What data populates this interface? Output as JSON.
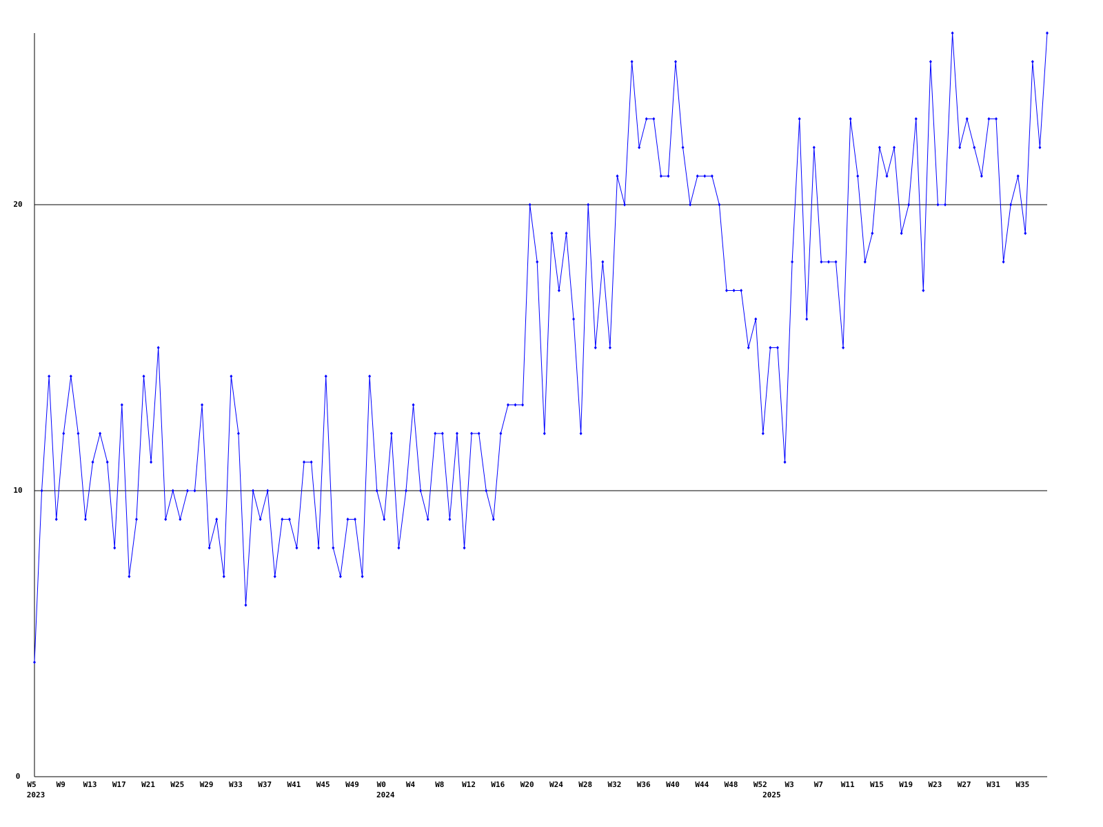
{
  "chart_data": {
    "type": "line",
    "categories": [
      "W5",
      null,
      null,
      null,
      "W9",
      null,
      null,
      null,
      "W13",
      null,
      null,
      null,
      "W17",
      null,
      null,
      null,
      "W21",
      null,
      null,
      null,
      "W25",
      null,
      null,
      null,
      "W29",
      null,
      null,
      null,
      "W33",
      null,
      null,
      null,
      "W37",
      null,
      null,
      null,
      "W41",
      null,
      null,
      null,
      "W45",
      null,
      null,
      null,
      "W49",
      null,
      null,
      null,
      "W0",
      null,
      null,
      null,
      "W4",
      null,
      null,
      null,
      "W8",
      null,
      null,
      null,
      "W12",
      null,
      null,
      null,
      "W16",
      null,
      null,
      null,
      "W20",
      null,
      null,
      null,
      "W24",
      null,
      null,
      null,
      "W28",
      null,
      null,
      null,
      "W32",
      null,
      null,
      null,
      "W36",
      null,
      null,
      null,
      "W40",
      null,
      null,
      null,
      "W44",
      null,
      null,
      null,
      "W48",
      null,
      null,
      null,
      "W52",
      null,
      null,
      null,
      "W3",
      null,
      null,
      null,
      "W7",
      null,
      null,
      null,
      "W11",
      null,
      null,
      null,
      "W15",
      null,
      null,
      null,
      "W19",
      null,
      null,
      null,
      "W23",
      null,
      null,
      null,
      "W27",
      null,
      null,
      null,
      "W31",
      null,
      null,
      null,
      "W35",
      null,
      null,
      null
    ],
    "years": [
      "2023",
      null,
      null,
      null,
      null,
      null,
      null,
      null,
      null,
      null,
      null,
      null,
      null,
      null,
      null,
      null,
      null,
      null,
      null,
      null,
      null,
      null,
      null,
      null,
      null,
      null,
      null,
      null,
      null,
      null,
      null,
      null,
      null,
      null,
      null,
      null,
      null,
      null,
      null,
      null,
      null,
      null,
      null,
      null,
      null,
      null,
      null,
      null,
      "2024",
      null,
      null,
      null,
      null,
      null,
      null,
      null,
      null,
      null,
      null,
      null,
      null,
      null,
      null,
      null,
      null,
      null,
      null,
      null,
      null,
      null,
      null,
      null,
      null,
      null,
      null,
      null,
      null,
      null,
      null,
      null,
      null,
      null,
      null,
      null,
      null,
      null,
      null,
      null,
      null,
      null,
      null,
      null,
      null,
      null,
      null,
      null,
      null,
      null,
      null,
      null,
      null,
      "2025",
      null,
      null,
      null,
      null,
      null,
      null,
      null,
      null,
      null,
      null,
      null,
      null,
      null,
      null,
      null,
      null,
      null,
      null,
      null,
      null,
      null,
      null,
      null,
      null,
      null,
      null,
      null,
      null,
      null,
      null,
      null,
      null,
      null,
      null,
      null,
      null,
      null,
      null
    ],
    "series": [
      {
        "color": "#0000ff",
        "values": [
          4,
          10,
          14,
          9,
          12,
          14,
          12,
          9,
          11,
          12,
          11,
          8,
          13,
          7,
          9,
          14,
          11,
          15,
          9,
          10,
          9,
          10,
          10,
          13,
          8,
          9,
          7,
          14,
          12,
          6,
          10,
          9,
          10,
          7,
          9,
          9,
          8,
          11,
          11,
          8,
          14,
          8,
          7,
          9,
          9,
          7,
          14,
          10,
          9,
          12,
          8,
          10,
          13,
          10,
          9,
          12,
          12,
          9,
          12,
          8,
          12,
          12,
          10,
          9,
          12,
          13,
          13,
          13,
          20,
          18,
          12,
          19,
          17,
          19,
          16,
          12,
          20,
          15,
          18,
          15,
          21,
          20,
          25,
          22,
          23,
          23,
          21,
          21,
          25,
          22,
          20,
          21,
          21,
          21,
          20,
          17,
          17,
          17,
          15,
          16,
          12,
          15,
          15,
          11,
          18,
          23,
          16,
          22,
          18,
          18,
          18,
          15,
          23,
          21,
          18,
          19,
          22,
          21,
          22,
          19,
          20,
          23,
          17,
          25,
          20,
          20,
          26,
          22,
          23,
          22,
          21,
          23,
          23,
          18,
          20,
          21,
          19,
          25,
          22,
          26
        ]
      }
    ],
    "ylim": [
      0,
      26
    ],
    "yticks": [
      0,
      10,
      20
    ],
    "grid": true
  }
}
